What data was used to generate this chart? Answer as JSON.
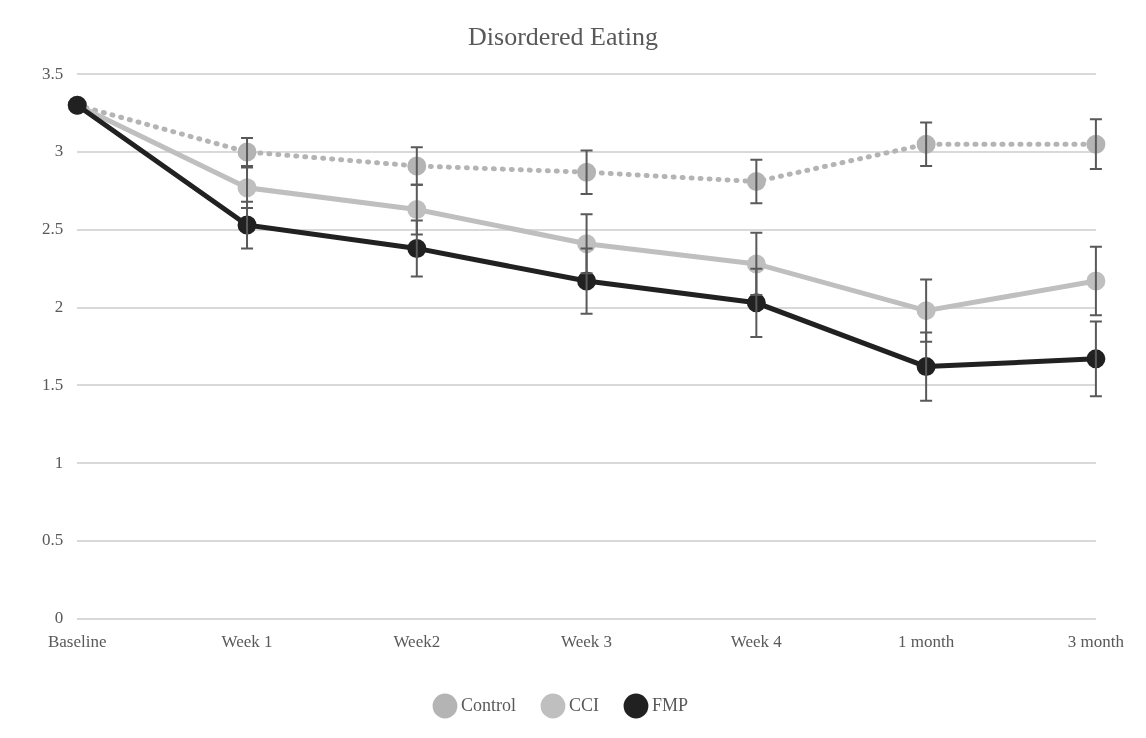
{
  "chart_data": {
    "type": "line",
    "title": "Disordered Eating",
    "categories": [
      "Baseline",
      "Week 1",
      "Week2",
      "Week 3",
      "Week 4",
      "1 month",
      "3 month"
    ],
    "series": [
      {
        "name": "Control",
        "color": "#b4b4b4",
        "line_style": "dotted",
        "values": [
          3.3,
          3.0,
          2.91,
          2.87,
          2.81,
          3.05,
          3.05
        ],
        "errors": [
          null,
          0.09,
          0.12,
          0.14,
          0.14,
          0.14,
          0.16
        ]
      },
      {
        "name": "CCI",
        "color": "#bfbfbf",
        "line_style": "solid",
        "values": [
          3.3,
          2.77,
          2.63,
          2.41,
          2.28,
          1.98,
          2.17
        ],
        "errors": [
          null,
          0.13,
          0.16,
          0.19,
          0.2,
          0.2,
          0.22
        ]
      },
      {
        "name": "FMP",
        "color": "#212121",
        "line_style": "solid",
        "values": [
          3.3,
          2.53,
          2.38,
          2.17,
          2.03,
          1.62,
          1.67
        ],
        "errors": [
          null,
          0.15,
          0.18,
          0.21,
          0.22,
          0.22,
          0.24
        ]
      }
    ],
    "ylim": [
      0,
      3.5
    ],
    "yticks": [
      0,
      0.5,
      1,
      1.5,
      2,
      2.5,
      3,
      3.5
    ],
    "grid": "y",
    "legend": "bottom",
    "marker": "circle"
  }
}
